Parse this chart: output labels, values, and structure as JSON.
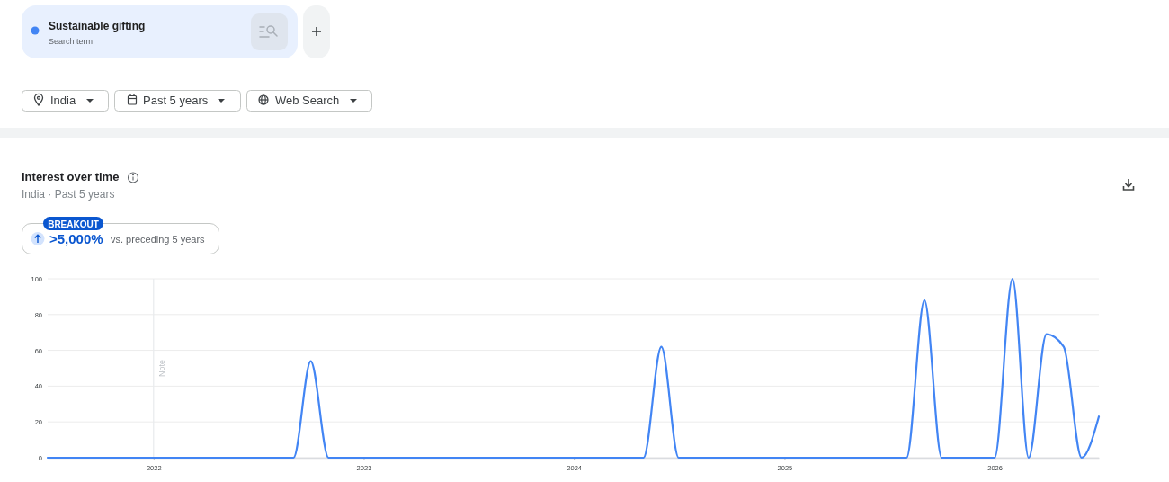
{
  "chart_data": {
    "type": "line",
    "title": "Interest over time",
    "subtitle": "India · Past 5 years",
    "annotations": [
      "Search term",
      "India",
      "Past 5 years",
      "Web Search",
      "BREAKOUT",
      ">5,000%",
      "vs. preceding 5 years"
    ],
    "x": [
      "2021-07",
      "2021-08",
      "2021-09",
      "2021-10",
      "2021-11",
      "2021-12",
      "2022-01",
      "2022-02",
      "2022-03",
      "2022-04",
      "2022-05",
      "2022-06",
      "2022-07",
      "2022-08",
      "2022-09",
      "2022-10",
      "2022-11",
      "2022-12",
      "2023-01",
      "2023-02",
      "2023-03",
      "2023-04",
      "2023-05",
      "2023-06",
      "2023-07",
      "2023-08",
      "2023-09",
      "2023-10",
      "2023-11",
      "2023-12",
      "2024-01",
      "2024-02",
      "2024-03",
      "2024-04",
      "2024-05",
      "2024-06",
      "2024-07",
      "2024-08",
      "2024-09",
      "2024-10",
      "2024-11",
      "2024-12",
      "2025-01",
      "2025-02",
      "2025-03",
      "2025-04",
      "2025-05",
      "2025-06",
      "2025-07",
      "2025-08",
      "2025-09",
      "2025-10",
      "2025-11",
      "2025-12",
      "2026-01",
      "2026-02",
      "2026-03",
      "2026-04",
      "2026-05",
      "2026-06",
      "2026-07"
    ],
    "series": [
      {
        "name": "Sustainable gifting",
        "color": "#4285f4",
        "values": [
          0,
          0,
          0,
          0,
          0,
          0,
          0,
          0,
          0,
          0,
          0,
          0,
          0,
          0,
          0,
          54,
          0,
          0,
          0,
          0,
          0,
          0,
          0,
          0,
          0,
          0,
          0,
          0,
          0,
          0,
          0,
          0,
          0,
          0,
          0,
          62,
          0,
          0,
          0,
          0,
          0,
          0,
          0,
          0,
          0,
          0,
          0,
          0,
          0,
          0,
          88,
          0,
          0,
          0,
          0,
          100,
          0,
          69,
          62,
          0,
          23
        ]
      }
    ],
    "xlim": [
      "2021-07",
      "2026-07"
    ],
    "xticks": [
      "2022",
      "2023",
      "2024",
      "2025",
      "2026"
    ],
    "ylim": [
      0,
      100
    ],
    "yticks": [
      0,
      20,
      40,
      60,
      80,
      100
    ],
    "grid": "y",
    "legend": "top left",
    "ref_lines": [
      {
        "axis": "x",
        "value": "2022-01",
        "label": "Note",
        "color": "#e8eaed"
      }
    ]
  }
}
